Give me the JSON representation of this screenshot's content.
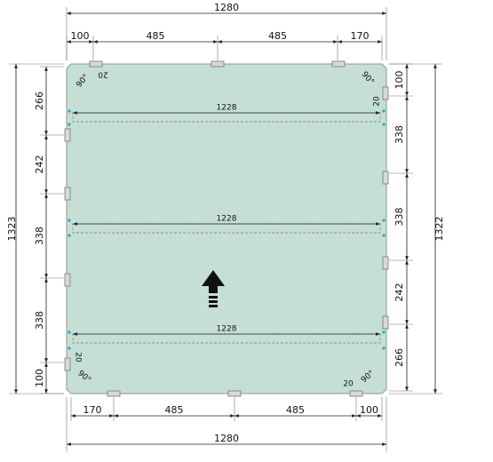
{
  "dimensions": {
    "top_total": 1280,
    "top": [
      100,
      485,
      485,
      170
    ],
    "bottom": [
      170,
      485,
      485,
      100
    ],
    "bottom_total": 1280,
    "left_total": 1323,
    "left": [
      266,
      242,
      338,
      338,
      100
    ],
    "right_total": 1322,
    "right": [
      100,
      338,
      338,
      242,
      266
    ]
  },
  "inner_widths": [
    1228,
    1228,
    1228
  ],
  "gaps": [
    20,
    20,
    20,
    20
  ],
  "angles": [
    "90°",
    "90°",
    "90°",
    "90°"
  ]
}
